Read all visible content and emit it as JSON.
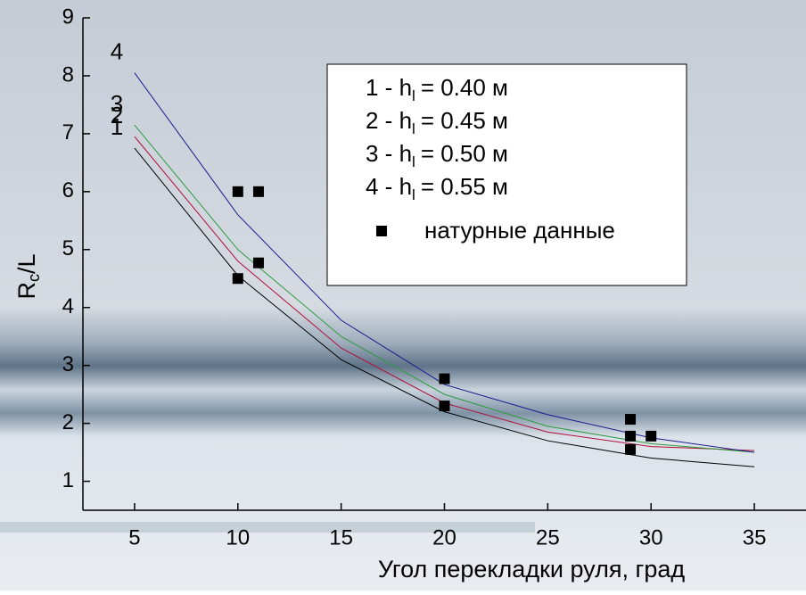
{
  "chart_data": {
    "type": "line",
    "xlabel": "Угол перекладки руля, град",
    "ylabel": "R",
    "ylabel_sub": "c",
    "ylabel_suffix": "/L",
    "xlim": [
      2.5,
      37.5
    ],
    "ylim": [
      0.5,
      9
    ],
    "xticks": [
      5,
      10,
      15,
      20,
      25,
      30,
      35
    ],
    "yticks": [
      1,
      2,
      3,
      4,
      5,
      6,
      7,
      8,
      9
    ],
    "x": [
      5,
      10,
      15,
      20,
      25,
      30,
      35
    ],
    "series": [
      {
        "curve_label": "1",
        "name": "1 -  h",
        "name_sub": "l",
        "name_suffix": "= 0.40 м",
        "color": "#000000",
        "values": [
          6.75,
          4.55,
          3.1,
          2.2,
          1.7,
          1.4,
          1.25
        ]
      },
      {
        "curve_label": "2",
        "name": "2 -  h",
        "name_sub": "l",
        "name_suffix": "= 0.45 м",
        "color": "#b0103a",
        "values": [
          6.95,
          4.8,
          3.3,
          2.35,
          1.85,
          1.6,
          1.53
        ]
      },
      {
        "curve_label": "3",
        "name": "3 -  h",
        "name_sub": "l",
        "name_suffix": "= 0.50 м",
        "color": "#2e9a3e",
        "values": [
          7.15,
          5.0,
          3.5,
          2.5,
          1.95,
          1.65,
          1.5
        ]
      },
      {
        "curve_label": "4",
        "name": "4 -  h",
        "name_sub": "l",
        "name_suffix": "= 0.55 м",
        "color": "#1a1a8c",
        "values": [
          8.05,
          5.6,
          3.78,
          2.67,
          2.15,
          1.75,
          1.5
        ]
      }
    ],
    "scatter": {
      "name": "натурные данные",
      "color": "#000000",
      "x": [
        10,
        11,
        10,
        11,
        20,
        20,
        29,
        29,
        30,
        29
      ],
      "y": [
        6.0,
        6.0,
        4.5,
        4.77,
        2.77,
        2.3,
        2.07,
        1.78,
        1.78,
        1.55
      ]
    }
  }
}
